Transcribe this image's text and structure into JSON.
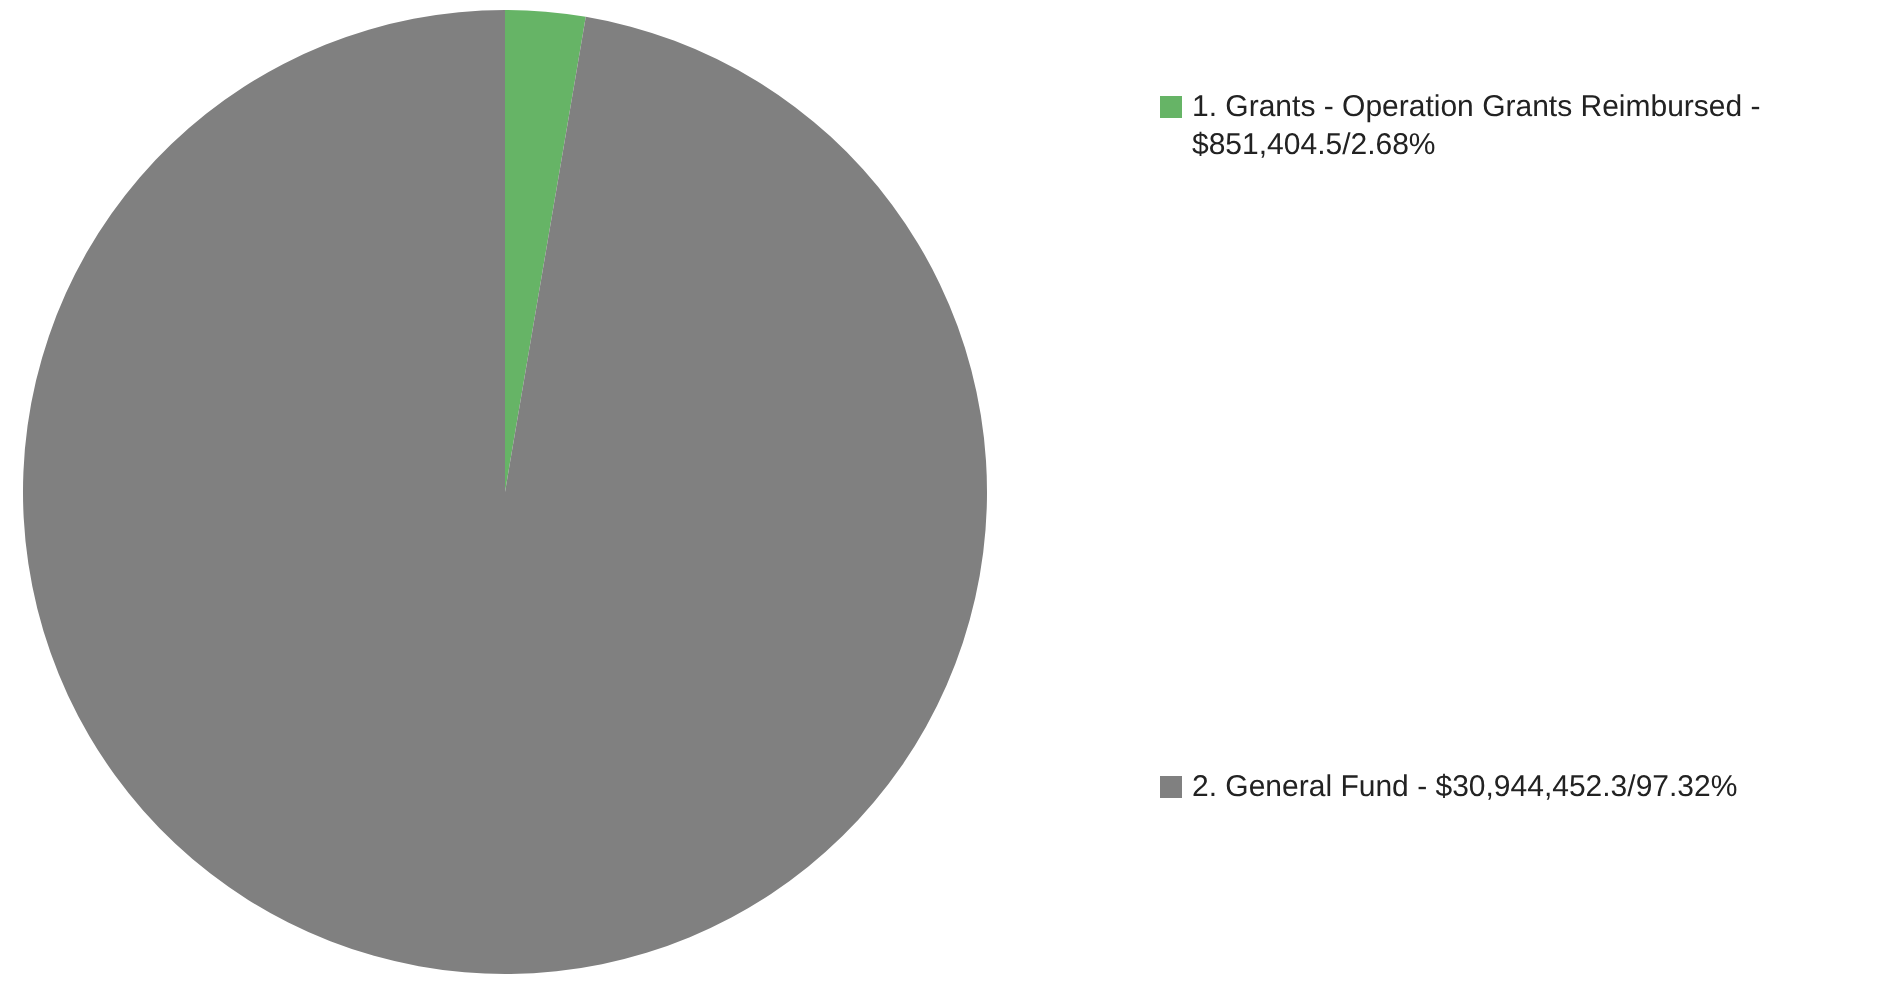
{
  "chart_data": {
    "type": "pie",
    "categories": [
      "1. Grants - Operation Grants Reimbursed - $851,404.5/2.68%",
      "2. General Fund - $30,944,452.3/97.32%"
    ],
    "values": [
      2.68,
      97.32
    ],
    "colors": [
      "#66b466",
      "#808080"
    ],
    "legend": "right"
  }
}
